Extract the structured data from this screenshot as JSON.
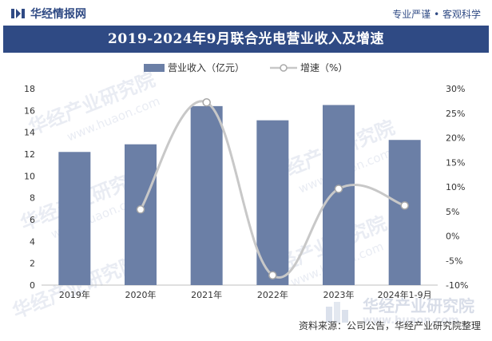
{
  "header": {
    "brand": "华经情报网",
    "slogan": "专业严谨 • 客观科学"
  },
  "watermark": {
    "text": "华经产业研究院",
    "url": "www.huaon.com",
    "logo_text": "华经产业研究院"
  },
  "source": "资料来源：公司公告，华经产业研究院整理",
  "colors": {
    "bar": "#6b7fa6",
    "line": "#c8c8c8",
    "title_band": "#2f4a84"
  },
  "chart_data": {
    "type": "bar",
    "title": "2019-2024年9月联合光电营业收入及增速",
    "categories": [
      "2019年",
      "2020年",
      "2021年",
      "2022年",
      "2023年",
      "2024年1-9月"
    ],
    "series": [
      {
        "name": "营业收入（亿元）",
        "type": "bar",
        "axis": "left",
        "values": [
          12.2,
          12.9,
          16.4,
          15.1,
          16.5,
          13.3
        ]
      },
      {
        "name": "增速（%）",
        "type": "line",
        "axis": "right",
        "values": [
          null,
          5.4,
          27.2,
          -8.0,
          9.6,
          6.2
        ]
      }
    ],
    "y_left": {
      "min": 0,
      "max": 18,
      "step": 2,
      "ticks": [
        "0",
        "2",
        "4",
        "6",
        "8",
        "10",
        "12",
        "14",
        "16",
        "18"
      ]
    },
    "y_right": {
      "min": -10,
      "max": 30,
      "step": 5,
      "ticks": [
        "-10%",
        "-5%",
        "0%",
        "5%",
        "10%",
        "15%",
        "20%",
        "25%",
        "30%"
      ]
    },
    "legend": "top-center",
    "grid": false
  }
}
